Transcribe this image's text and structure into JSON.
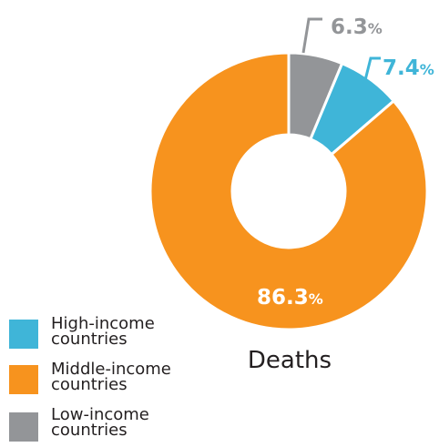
{
  "chart_data": {
    "type": "donut",
    "title": "Deaths",
    "unit": "%",
    "series": [
      {
        "name": "Low-income countries",
        "value": 6.3,
        "color": "#939598"
      },
      {
        "name": "High-income countries",
        "value": 7.4,
        "color": "#3fb5d8"
      },
      {
        "name": "Middle-income countries",
        "value": 86.3,
        "color": "#f7931e"
      }
    ],
    "data_labels": {
      "low": {
        "number": "6.3",
        "suffix": "%"
      },
      "high": {
        "number": "7.4",
        "suffix": "%"
      },
      "middle": {
        "number": "86.3",
        "suffix": "%"
      }
    },
    "legend": [
      {
        "label": "High-income\ncountries",
        "color": "#3fb5d8"
      },
      {
        "label": "Middle-income\ncountries",
        "color": "#f7931e"
      },
      {
        "label": "Low-income\ncountries",
        "color": "#939598"
      }
    ],
    "legend_position": "bottom-left"
  }
}
